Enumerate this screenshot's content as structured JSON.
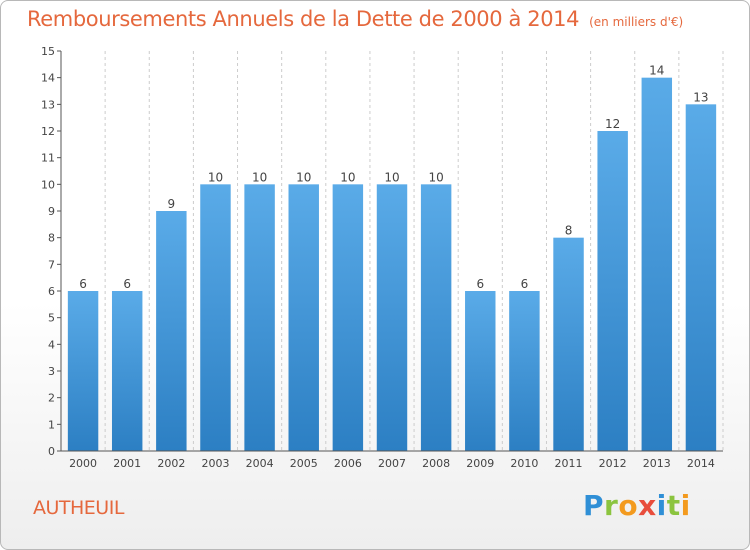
{
  "header": {
    "title": "Remboursements Annuels de la Dette de 2000 à 2014",
    "unit": "(en milliers d'€)"
  },
  "footer": {
    "commune": "AUTHEUIL",
    "logo": [
      "P",
      "r",
      "o",
      "x",
      "i",
      "t",
      "i"
    ]
  },
  "colors": {
    "title": "#e5683d",
    "bar_top": "#5aabe8",
    "bar_bottom": "#2c7fc3",
    "grid": "#cccccc"
  },
  "chart_data": {
    "type": "bar",
    "title": "Remboursements Annuels de la Dette de 2000 à 2014",
    "xlabel": "",
    "ylabel": "",
    "categories": [
      "2000",
      "2001",
      "2002",
      "2003",
      "2004",
      "2005",
      "2006",
      "2007",
      "2008",
      "2009",
      "2010",
      "2011",
      "2012",
      "2013",
      "2014"
    ],
    "values": [
      6,
      6,
      9,
      10,
      10,
      10,
      10,
      10,
      10,
      6,
      6,
      8,
      12,
      14,
      13
    ],
    "data_labels": [
      "6",
      "6",
      "9",
      "10",
      "10",
      "10",
      "10",
      "10",
      "10",
      "6",
      "6",
      "8",
      "12",
      "14",
      "13"
    ],
    "ylim": [
      0,
      15
    ],
    "yticks": [
      0,
      1,
      2,
      3,
      4,
      5,
      6,
      7,
      8,
      9,
      10,
      11,
      12,
      13,
      14,
      15
    ],
    "grid": "vertical dashed"
  }
}
